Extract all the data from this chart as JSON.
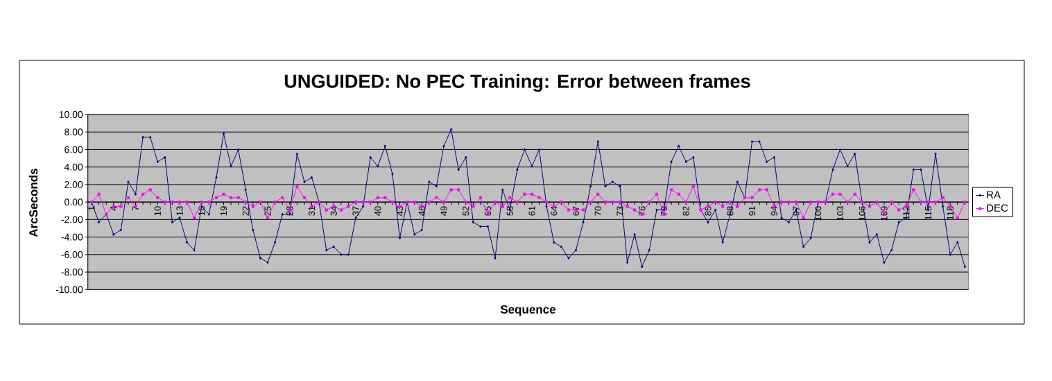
{
  "chart_data": {
    "type": "line",
    "title": "UNGUIDED: No PEC Training: Error between frames",
    "xlabel": "Sequence",
    "ylabel": "ArcSeconds",
    "categories": [
      "1",
      null,
      null,
      "4",
      null,
      null,
      "7",
      null,
      null,
      "10",
      null,
      null,
      "13",
      null,
      null,
      "16",
      null,
      null,
      "19",
      null,
      null,
      "22",
      null,
      null,
      "25",
      null,
      null,
      "28",
      null,
      null,
      "31",
      null,
      null,
      "34",
      null,
      null,
      "37",
      null,
      null,
      "40",
      null,
      null,
      "43",
      null,
      null,
      "46",
      null,
      null,
      "49",
      null,
      null,
      "52",
      null,
      null,
      "55",
      null,
      null,
      "58",
      null,
      null,
      "61",
      null,
      null,
      "64",
      null,
      null,
      "67",
      null,
      null,
      "70",
      null,
      null,
      "73",
      null,
      null,
      "76",
      null,
      null,
      "79",
      null,
      null,
      "82",
      null,
      null,
      "85",
      null,
      null,
      "88",
      null,
      null,
      "91",
      null,
      null,
      "94",
      null,
      null,
      "97",
      null,
      null,
      "100",
      null,
      null,
      "103",
      null,
      null,
      "106",
      null,
      null,
      "109",
      null,
      null,
      "112",
      null,
      null,
      "115",
      null,
      null,
      "118",
      null,
      null
    ],
    "series": [
      {
        "name": "RA",
        "color": "#000080",
        "marker": "diamond",
        "values": [
          0,
          -2.3,
          -1.4,
          -3.7,
          -3.2,
          2.3,
          0.9,
          7.4,
          7.4,
          4.6,
          5.1,
          -2.3,
          -1.8,
          -4.6,
          -5.5,
          -0.5,
          -1.4,
          2.8,
          7.8,
          4.1,
          6.0,
          1.4,
          -3.2,
          -6.4,
          -6.9,
          -4.6,
          -1.4,
          -1.4,
          5.5,
          2.3,
          2.8,
          0.0,
          -5.5,
          -5.1,
          -6.0,
          -6.0,
          -1.8,
          -0.5,
          5.1,
          4.1,
          6.4,
          3.2,
          -4.1,
          0.0,
          -3.7,
          -3.2,
          2.3,
          1.8,
          6.4,
          8.3,
          3.7,
          5.1,
          -2.3,
          -2.8,
          -2.8,
          -6.4,
          1.4,
          -0.9,
          3.7,
          6.0,
          4.1,
          6.0,
          -0.5,
          -4.6,
          -5.1,
          -6.4,
          -5.5,
          -2.3,
          1.8,
          6.9,
          1.8,
          2.3,
          1.8,
          -6.9,
          -3.7,
          -7.4,
          -5.5,
          -0.9,
          -0.9,
          4.6,
          6.4,
          4.6,
          5.1,
          -0.9,
          -2.3,
          -0.9,
          -4.6,
          -1.4,
          2.3,
          0.5,
          6.9,
          6.9,
          4.6,
          5.1,
          -1.8,
          -2.3,
          -0.9,
          -5.1,
          -4.1,
          0.0,
          0.0,
          3.7,
          6.0,
          4.1,
          5.5,
          0.0,
          -4.6,
          -3.7,
          -6.9,
          -5.5,
          -2.3,
          -1.8,
          3.7,
          3.7,
          -0.9,
          5.5,
          -0.5,
          -6.0,
          -4.6,
          -7.4
        ]
      },
      {
        "name": "DEC",
        "color": "#ff00ff",
        "marker": "square",
        "values": [
          0,
          0.9,
          -1.4,
          -0.5,
          -0.5,
          0.5,
          -0.5,
          0.9,
          1.4,
          0.5,
          0,
          0,
          0,
          0,
          -1.8,
          0,
          0,
          0.5,
          0.9,
          0.5,
          0.5,
          0,
          -0.5,
          0,
          -1.8,
          0,
          0.5,
          -0.9,
          1.8,
          0.5,
          -0.5,
          0,
          -0.9,
          -0.5,
          -0.9,
          -0.5,
          0,
          0,
          0,
          0.5,
          0.5,
          0,
          -0.5,
          0,
          0,
          -0.5,
          0,
          0.5,
          0,
          1.4,
          1.4,
          0,
          -0.5,
          0.5,
          -1.4,
          0,
          -0.5,
          0.5,
          0,
          0.9,
          0.9,
          0.5,
          0,
          -0.5,
          0,
          -0.9,
          -0.9,
          -0.9,
          0,
          0.9,
          0,
          0,
          0,
          -0.5,
          -0.9,
          -1.4,
          0,
          0.9,
          -1.4,
          1.4,
          0.9,
          0,
          1.8,
          -0.9,
          -0.5,
          0,
          -0.5,
          0,
          -0.5,
          0.5,
          0.5,
          1.4,
          1.4,
          -0.5,
          0,
          0,
          0,
          -1.8,
          0,
          0,
          0,
          0.9,
          0.9,
          0,
          0.9,
          0,
          -0.5,
          0,
          -1.4,
          0,
          -0.9,
          -0.5,
          1.4,
          0,
          0,
          0,
          0.5,
          -0.5,
          -1.8,
          0
        ]
      }
    ],
    "ylim": [
      -10,
      10
    ],
    "yticks": [
      {
        "value": -10,
        "label": "-10.00"
      },
      {
        "value": -8,
        "label": "-8.00"
      },
      {
        "value": -6,
        "label": "-6.00"
      },
      {
        "value": -4,
        "label": "-4.00"
      },
      {
        "value": -2,
        "label": "-2.00"
      },
      {
        "value": 0,
        "label": "0.00"
      },
      {
        "value": 2,
        "label": "2.00"
      },
      {
        "value": 4,
        "label": "4.00"
      },
      {
        "value": 6,
        "label": "6.00"
      },
      {
        "value": 8,
        "label": "8.00"
      },
      {
        "value": 10,
        "label": "10.00"
      }
    ],
    "grid": "y",
    "legend": "right"
  }
}
